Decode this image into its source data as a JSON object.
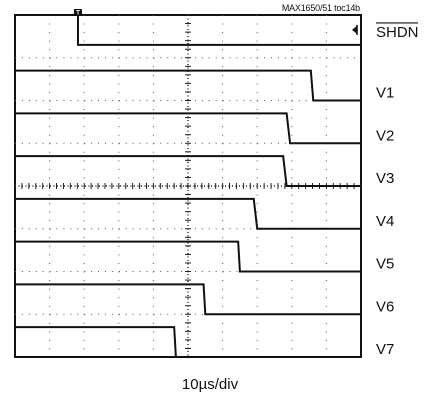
{
  "figure_id": "MAX1650/51 toc14b",
  "chart_data": {
    "type": "line",
    "title": "",
    "xlabel": "10µs/div",
    "ylabel": "",
    "xlim": [
      0,
      10
    ],
    "xlim_units": "divisions",
    "grid": true,
    "trigger_marker": "T",
    "channel_marker_label": "SHDN",
    "series": [
      {
        "name": "SHDN",
        "name_overlined": true,
        "high_level": 8.0,
        "low_level": 7.3,
        "transition_x": 1.82,
        "x": [
          0,
          1.82,
          1.82,
          10
        ],
        "y": [
          8.0,
          8.0,
          7.3,
          7.3
        ]
      },
      {
        "name": "V1",
        "high_level": 6.7,
        "low_level": 6.0,
        "transition_x": 8.55,
        "x": [
          0,
          8.55,
          8.62,
          10
        ],
        "y": [
          6.7,
          6.7,
          6.0,
          6.0
        ]
      },
      {
        "name": "V2",
        "high_level": 5.7,
        "low_level": 5.0,
        "transition_x": 7.85,
        "x": [
          0,
          7.85,
          7.95,
          10
        ],
        "y": [
          5.7,
          5.7,
          5.0,
          5.0
        ]
      },
      {
        "name": "V3",
        "high_level": 4.7,
        "low_level": 4.0,
        "transition_x": 7.75,
        "x": [
          0,
          7.75,
          7.85,
          10
        ],
        "y": [
          4.7,
          4.7,
          4.0,
          4.0
        ]
      },
      {
        "name": "V4",
        "high_level": 3.7,
        "low_level": 3.0,
        "transition_x": 6.9,
        "x": [
          0,
          6.9,
          7.0,
          10
        ],
        "y": [
          3.7,
          3.7,
          3.0,
          3.0
        ]
      },
      {
        "name": "V5",
        "high_level": 2.7,
        "low_level": 2.0,
        "transition_x": 6.45,
        "x": [
          0,
          6.45,
          6.5,
          10
        ],
        "y": [
          2.7,
          2.7,
          2.0,
          2.0
        ]
      },
      {
        "name": "V6",
        "high_level": 1.7,
        "low_level": 1.0,
        "transition_x": 5.45,
        "x": [
          0,
          5.45,
          5.5,
          10
        ],
        "y": [
          1.7,
          1.7,
          1.0,
          1.0
        ]
      },
      {
        "name": "V7",
        "high_level": 0.7,
        "low_level": 0.0,
        "transition_x": 4.6,
        "x": [
          0,
          4.6,
          4.65,
          10
        ],
        "y": [
          0.7,
          0.7,
          0.0,
          0.0
        ]
      }
    ]
  }
}
